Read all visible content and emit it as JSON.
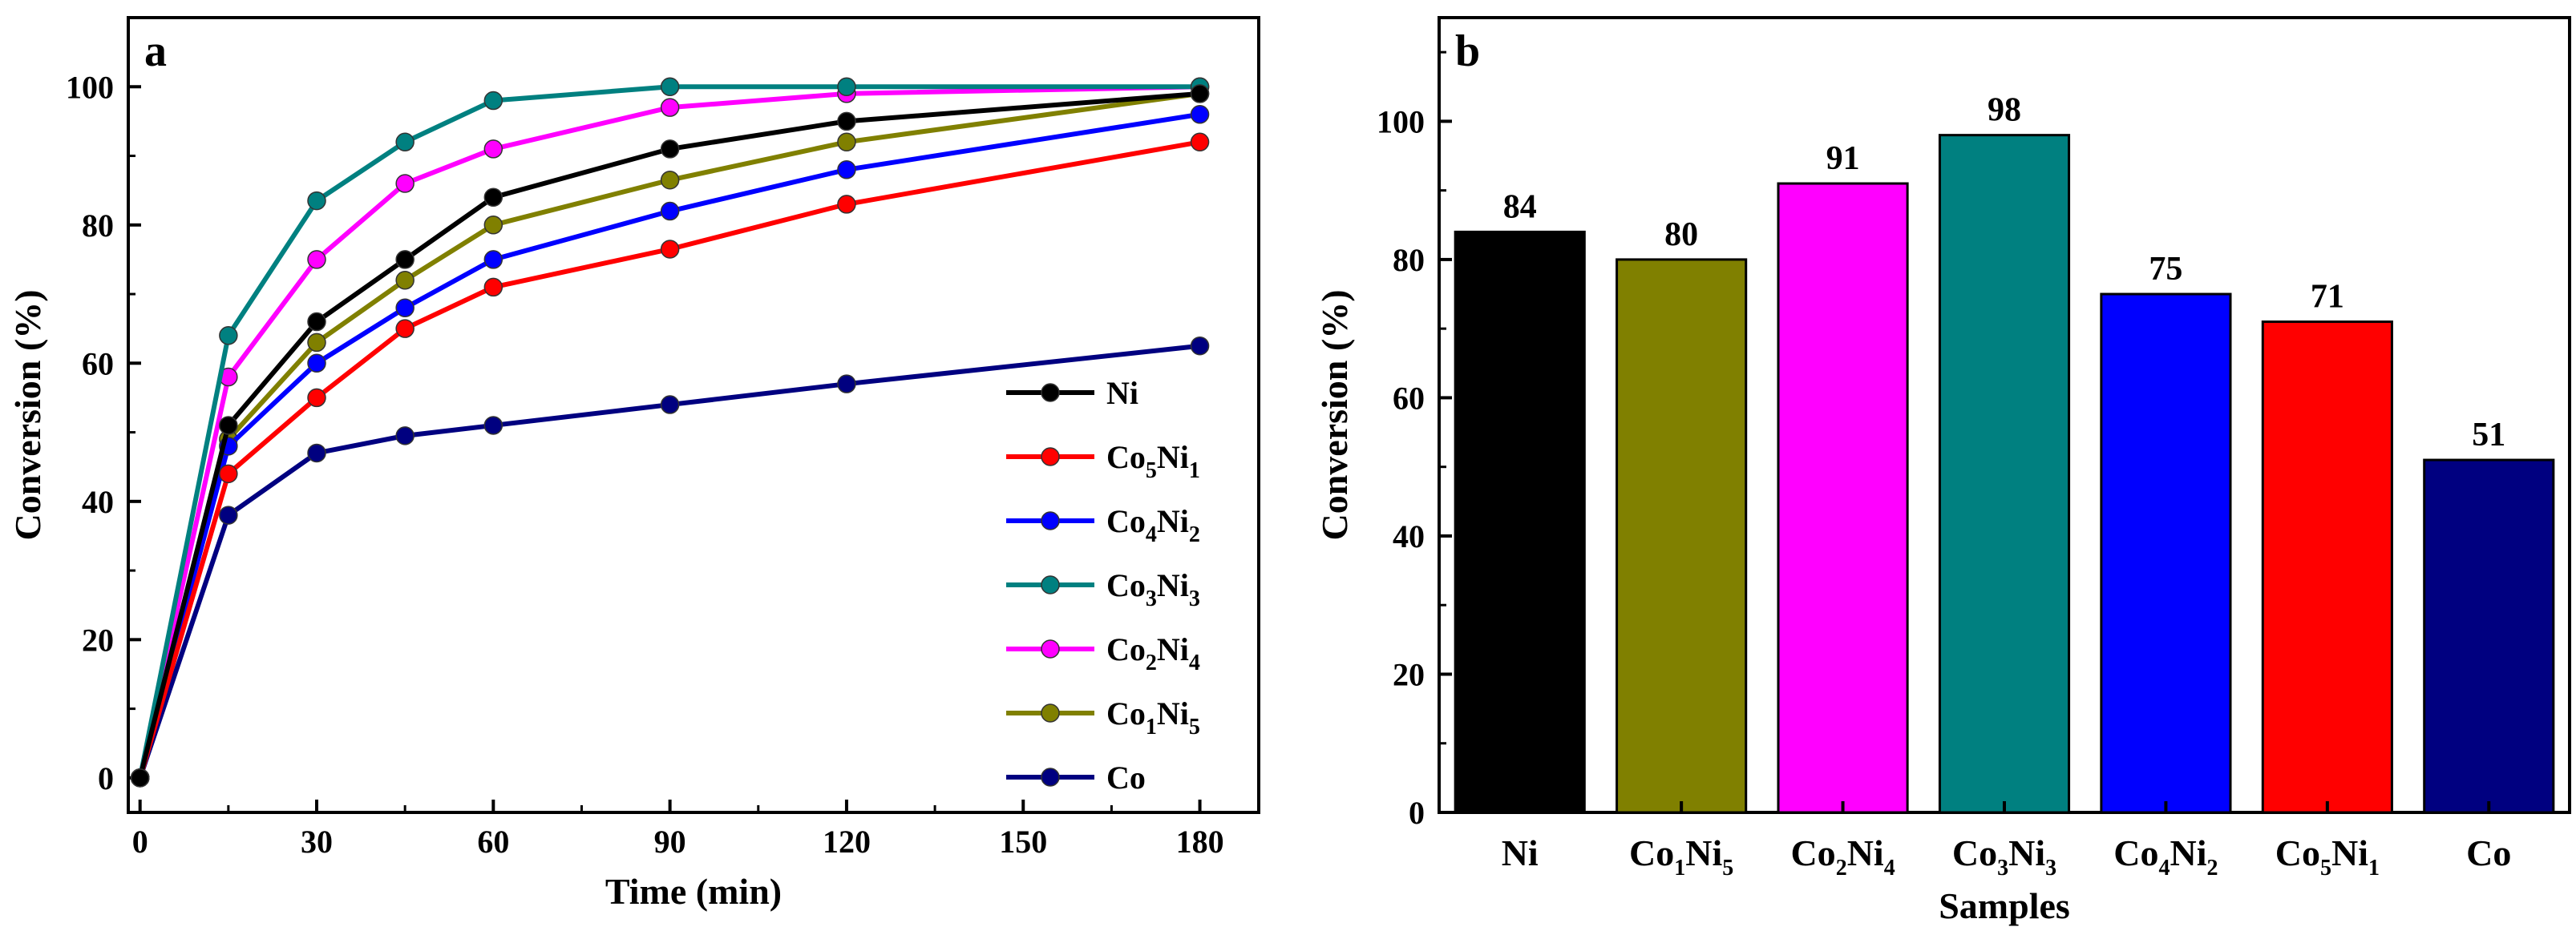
{
  "chart_data": [
    {
      "panel": "a",
      "type": "line",
      "xlabel": "Time (min)",
      "ylabel": "Conversion (%)",
      "xlim": [
        -2,
        190
      ],
      "ylim": [
        -5,
        110
      ],
      "x_ticks": [
        0,
        30,
        60,
        90,
        120,
        150,
        180
      ],
      "y_ticks": [
        0,
        20,
        40,
        60,
        80,
        100
      ],
      "legend_position": "bottom-right",
      "series": [
        {
          "name": "Ni",
          "parts": [
            [
              "Ni",
              ""
            ]
          ],
          "color": "#000000",
          "x": [
            0,
            15,
            30,
            45,
            60,
            90,
            120,
            180
          ],
          "y": [
            0,
            51,
            66,
            75,
            84,
            91,
            95,
            99
          ]
        },
        {
          "name": "Co5Ni1",
          "parts": [
            [
              "Co",
              "5"
            ],
            [
              "Ni",
              "1"
            ]
          ],
          "color": "#ff0000",
          "x": [
            0,
            15,
            30,
            45,
            60,
            90,
            120,
            180
          ],
          "y": [
            0,
            44,
            55,
            65,
            71,
            76.5,
            83,
            92
          ]
        },
        {
          "name": "Co4Ni2",
          "parts": [
            [
              "Co",
              "4"
            ],
            [
              "Ni",
              "2"
            ]
          ],
          "color": "#0000ff",
          "x": [
            0,
            15,
            30,
            45,
            60,
            90,
            120,
            180
          ],
          "y": [
            0,
            48,
            60,
            68,
            75,
            82,
            88,
            96
          ]
        },
        {
          "name": "Co3Ni3",
          "parts": [
            [
              "Co",
              "3"
            ],
            [
              "Ni",
              "3"
            ]
          ],
          "color": "#008080",
          "x": [
            0,
            15,
            30,
            45,
            60,
            90,
            120,
            180
          ],
          "y": [
            0,
            64,
            83.5,
            92,
            98,
            100,
            100,
            100
          ]
        },
        {
          "name": "Co2Ni4",
          "parts": [
            [
              "Co",
              "2"
            ],
            [
              "Ni",
              "4"
            ]
          ],
          "color": "#ff00ff",
          "x": [
            0,
            15,
            30,
            45,
            60,
            90,
            120,
            180
          ],
          "y": [
            0,
            58,
            75,
            86,
            91,
            97,
            99,
            100
          ]
        },
        {
          "name": "Co1Ni5",
          "parts": [
            [
              "Co",
              "1"
            ],
            [
              "Ni",
              "5"
            ]
          ],
          "color": "#808000",
          "x": [
            0,
            15,
            30,
            45,
            60,
            90,
            120,
            180
          ],
          "y": [
            0,
            49,
            63,
            72,
            80,
            86.5,
            92,
            99
          ]
        },
        {
          "name": "Co",
          "parts": [
            [
              "Co",
              ""
            ]
          ],
          "color": "#000080",
          "x": [
            0,
            15,
            30,
            45,
            60,
            90,
            120,
            180
          ],
          "y": [
            0,
            38,
            47,
            49.5,
            51,
            54,
            57,
            62.5
          ]
        }
      ]
    },
    {
      "panel": "b",
      "type": "bar",
      "xlabel": "Samples",
      "ylabel": "Conversion (%)",
      "ylim": [
        0,
        115
      ],
      "y_ticks": [
        0,
        20,
        40,
        60,
        80,
        100
      ],
      "categories": [
        {
          "name": "Ni",
          "parts": [
            [
              "Ni",
              ""
            ]
          ]
        },
        {
          "name": "Co1Ni5",
          "parts": [
            [
              "Co",
              "1"
            ],
            [
              "Ni",
              "5"
            ]
          ]
        },
        {
          "name": "Co2Ni4",
          "parts": [
            [
              "Co",
              "2"
            ],
            [
              "Ni",
              "4"
            ]
          ]
        },
        {
          "name": "Co3Ni3",
          "parts": [
            [
              "Co",
              "3"
            ],
            [
              "Ni",
              "3"
            ]
          ]
        },
        {
          "name": "Co4Ni2",
          "parts": [
            [
              "Co",
              "4"
            ],
            [
              "Ni",
              "2"
            ]
          ]
        },
        {
          "name": "Co5Ni1",
          "parts": [
            [
              "Co",
              "5"
            ],
            [
              "Ni",
              "1"
            ]
          ]
        },
        {
          "name": "Co",
          "parts": [
            [
              "Co",
              ""
            ]
          ]
        }
      ],
      "values": [
        84,
        80,
        91,
        98,
        75,
        71,
        51
      ],
      "colors": [
        "#000000",
        "#808000",
        "#ff00ff",
        "#008080",
        "#0000ff",
        "#ff0000",
        "#000080"
      ]
    }
  ]
}
